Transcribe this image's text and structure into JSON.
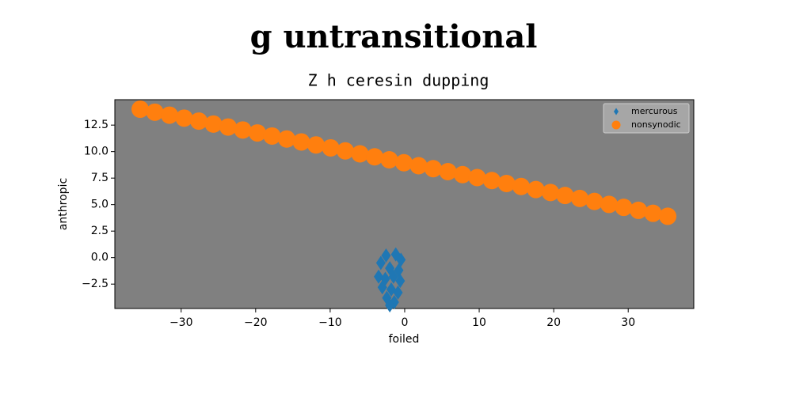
{
  "chart_data": {
    "type": "scatter",
    "title": "g untransitional",
    "subtitle": "Z h ceresin dupping",
    "xlabel": "foiled",
    "ylabel": "anthropic",
    "xlim": [
      -38.9,
      38.8
    ],
    "ylim": [
      -4.8,
      14.9
    ],
    "xticks": [
      {
        "value": -30,
        "label": "−30"
      },
      {
        "value": -20,
        "label": "−20"
      },
      {
        "value": -10,
        "label": "−10"
      },
      0,
      10,
      20,
      30
    ],
    "yticks": [
      {
        "value": -2.5,
        "label": "−2.5"
      },
      {
        "value": 0,
        "label": "0.0"
      },
      2.5,
      {
        "value": 5,
        "label": "5.0"
      },
      7.5,
      {
        "value": 10,
        "label": "10.0"
      },
      12.5
    ],
    "legend": "upper right",
    "series": [
      {
        "name": "mercurous",
        "color": "#1f77b4",
        "marker": "diamond",
        "x": [
          -2.5,
          -1.2,
          -0.5,
          -3.2,
          -2.0,
          -0.8,
          -3.5,
          -2.6,
          -1.5,
          -0.6,
          -3.0,
          -1.8,
          -0.9,
          -2.4,
          -1.4,
          -2.0
        ],
        "values": [
          0.2,
          0.3,
          -0.2,
          -0.5,
          -1.0,
          -1.2,
          -1.8,
          -2.0,
          -1.8,
          -2.2,
          -2.8,
          -3.0,
          -3.3,
          -3.8,
          -4.2,
          -4.5
        ]
      },
      {
        "name": "nonsynodic",
        "color": "#ff7f0e",
        "marker": "circle",
        "x": [
          -35.5,
          -33.53,
          -31.57,
          -29.6,
          -27.63,
          -25.67,
          -23.7,
          -21.73,
          -19.77,
          -17.8,
          -15.83,
          -13.87,
          -11.9,
          -9.93,
          -7.97,
          -6.0,
          -4.03,
          -2.07,
          -0.1,
          1.87,
          3.83,
          5.8,
          7.77,
          9.73,
          11.7,
          13.67,
          15.63,
          17.6,
          19.57,
          21.53,
          23.5,
          25.47,
          27.43,
          29.4,
          31.37,
          33.33,
          35.3
        ],
        "values": [
          14.0,
          13.72,
          13.44,
          13.16,
          12.88,
          12.6,
          12.32,
          12.04,
          11.76,
          11.47,
          11.19,
          10.91,
          10.63,
          10.35,
          10.07,
          9.79,
          9.51,
          9.23,
          8.95,
          8.67,
          8.39,
          8.11,
          7.83,
          7.55,
          7.27,
          6.99,
          6.71,
          6.42,
          6.14,
          5.86,
          5.58,
          5.3,
          5.02,
          4.74,
          4.46,
          4.18,
          3.9
        ]
      }
    ]
  }
}
